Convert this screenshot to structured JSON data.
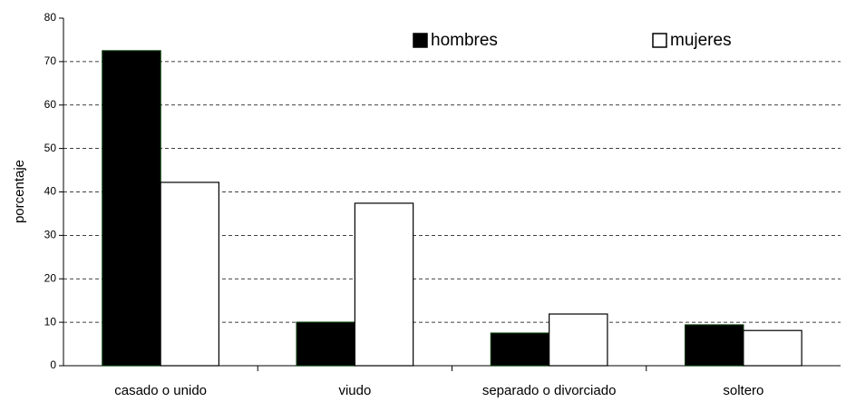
{
  "chart_data": {
    "type": "bar",
    "y_label": "porcentaje",
    "categories": [
      "casado o unido",
      "viudo",
      "separado o divorciado",
      "soltero"
    ],
    "series": [
      {
        "name": "hombres",
        "color": "#000000",
        "values": [
          72.5,
          10,
          7.5,
          9.4
        ]
      },
      {
        "name": "mujeres",
        "color": "#ffffff",
        "values": [
          42.2,
          37.4,
          11.9,
          8.1
        ]
      }
    ],
    "ylim": [
      0,
      80
    ],
    "yticks": [
      0,
      10,
      20,
      30,
      40,
      50,
      60,
      70,
      80
    ],
    "grid": true,
    "legend": "top"
  }
}
